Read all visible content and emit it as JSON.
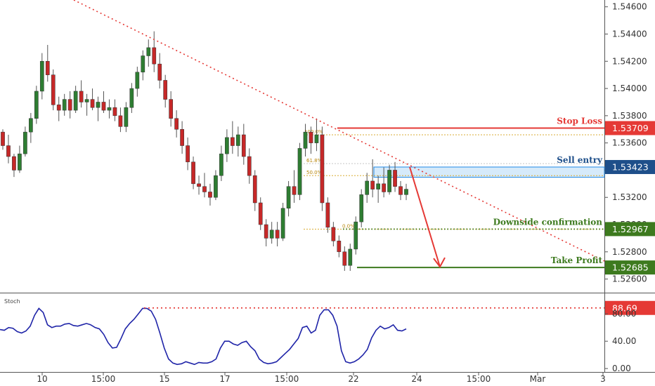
{
  "chart_data": {
    "type": "candlestick",
    "price_axis": {
      "ticks": [
        "1.54600",
        "1.54400",
        "1.54200",
        "1.54000",
        "1.53800",
        "1.53600",
        "1.53400",
        "1.53200",
        "1.53000",
        "1.52800",
        "1.52600"
      ],
      "range": [
        1.525,
        1.5465
      ]
    },
    "time_axis": {
      "ticks": [
        "10",
        "15:00",
        "15",
        "17",
        "15:00",
        "22",
        "24",
        "15:00",
        "Mar",
        "3"
      ]
    },
    "levels": {
      "stop_loss": {
        "label": "Stop Loss",
        "value": "1.53709",
        "price": 1.53709,
        "color": "#e53935"
      },
      "sell_entry": {
        "label": "Sell entry",
        "value": "1.53423",
        "price": 1.53423,
        "color": "#1e4f8a"
      },
      "downside_confirmation": {
        "label": "Downside confirmation",
        "value": "1.52967",
        "price": 1.52967,
        "color": "#3d7a1e"
      },
      "take_profit": {
        "label": "Take Profit",
        "value": "1.52685",
        "price": 1.52685,
        "color": "#3d7a1e"
      }
    },
    "fib_labels": [
      "100.0%",
      "61.8%",
      "50.0%",
      "0.0%"
    ],
    "stoch": {
      "label": "Stoch",
      "ticks": [
        "80.00",
        "40.00",
        "0.00"
      ],
      "range": [
        -5,
        110
      ],
      "level": {
        "value": "88.69",
        "number": 88.69,
        "color": "#e53935"
      },
      "series": [
        57,
        56,
        60,
        59,
        54,
        52,
        55,
        62,
        78,
        88,
        82,
        64,
        60,
        62,
        62,
        65,
        66,
        63,
        62,
        64,
        66,
        64,
        60,
        58,
        50,
        38,
        30,
        31,
        44,
        58,
        66,
        72,
        80,
        88,
        88,
        84,
        72,
        52,
        30,
        14,
        8,
        6,
        7,
        10,
        8,
        6,
        9,
        8,
        8,
        10,
        14,
        30,
        40,
        40,
        36,
        34,
        38,
        40,
        32,
        26,
        14,
        9,
        7,
        8,
        10,
        16,
        22,
        28,
        36,
        44,
        60,
        62,
        52,
        56,
        78,
        86,
        86,
        78,
        62,
        26,
        10,
        8,
        10,
        14,
        20,
        28,
        45,
        56,
        62,
        58,
        60,
        64,
        56,
        55,
        58
      ]
    },
    "price_series": [
      [
        1.5368,
        1.537,
        1.5355,
        1.5358
      ],
      [
        1.5358,
        1.5366,
        1.5345,
        1.535
      ],
      [
        1.535,
        1.5352,
        1.5335,
        1.534
      ],
      [
        1.534,
        1.5358,
        1.5338,
        1.5352
      ],
      [
        1.5352,
        1.5372,
        1.535,
        1.5368
      ],
      [
        1.5368,
        1.5382,
        1.536,
        1.5378
      ],
      [
        1.5378,
        1.5402,
        1.5374,
        1.5398
      ],
      [
        1.5398,
        1.5426,
        1.5392,
        1.542
      ],
      [
        1.542,
        1.5432,
        1.5405,
        1.541
      ],
      [
        1.541,
        1.5414,
        1.5384,
        1.5388
      ],
      [
        1.5388,
        1.5394,
        1.5376,
        1.5384
      ],
      [
        1.5384,
        1.5396,
        1.538,
        1.5392
      ],
      [
        1.5392,
        1.5398,
        1.5378,
        1.5384
      ],
      [
        1.5384,
        1.5402,
        1.5382,
        1.5398
      ],
      [
        1.5398,
        1.5406,
        1.5386,
        1.539
      ],
      [
        1.539,
        1.5396,
        1.538,
        1.5392
      ],
      [
        1.5392,
        1.54,
        1.5384,
        1.5386
      ],
      [
        1.5386,
        1.5394,
        1.5376,
        1.539
      ],
      [
        1.539,
        1.5398,
        1.5382,
        1.5384
      ],
      [
        1.5384,
        1.5392,
        1.5378,
        1.5386
      ],
      [
        1.5386,
        1.5392,
        1.5376,
        1.538
      ],
      [
        1.538,
        1.5386,
        1.5368,
        1.5372
      ],
      [
        1.5372,
        1.539,
        1.5368,
        1.5386
      ],
      [
        1.5386,
        1.5404,
        1.5382,
        1.54
      ],
      [
        1.54,
        1.5416,
        1.5394,
        1.5412
      ],
      [
        1.5412,
        1.5428,
        1.5406,
        1.5424
      ],
      [
        1.5424,
        1.5436,
        1.5416,
        1.543
      ],
      [
        1.543,
        1.5442,
        1.5412,
        1.5418
      ],
      [
        1.5418,
        1.5426,
        1.54,
        1.5406
      ],
      [
        1.5406,
        1.541,
        1.5386,
        1.5392
      ],
      [
        1.5392,
        1.5398,
        1.5372,
        1.5378
      ],
      [
        1.5378,
        1.5384,
        1.5364,
        1.537
      ],
      [
        1.537,
        1.5376,
        1.5352,
        1.5358
      ],
      [
        1.5358,
        1.5364,
        1.534,
        1.5346
      ],
      [
        1.5346,
        1.535,
        1.5326,
        1.533
      ],
      [
        1.533,
        1.5336,
        1.5322,
        1.5328
      ],
      [
        1.5328,
        1.5338,
        1.532,
        1.5324
      ],
      [
        1.5324,
        1.533,
        1.5314,
        1.532
      ],
      [
        1.532,
        1.534,
        1.5318,
        1.5336
      ],
      [
        1.5336,
        1.5358,
        1.5332,
        1.5352
      ],
      [
        1.5352,
        1.537,
        1.5346,
        1.5364
      ],
      [
        1.5364,
        1.5376,
        1.5352,
        1.5358
      ],
      [
        1.5358,
        1.5372,
        1.535,
        1.5366
      ],
      [
        1.5366,
        1.5374,
        1.5344,
        1.535
      ],
      [
        1.535,
        1.5356,
        1.533,
        1.5336
      ],
      [
        1.5336,
        1.534,
        1.531,
        1.5316
      ],
      [
        1.5316,
        1.532,
        1.5296,
        1.53
      ],
      [
        1.53,
        1.5304,
        1.5284,
        1.529
      ],
      [
        1.529,
        1.5302,
        1.5286,
        1.5296
      ],
      [
        1.5296,
        1.5302,
        1.5284,
        1.529
      ],
      [
        1.529,
        1.5316,
        1.5288,
        1.5312
      ],
      [
        1.5312,
        1.5332,
        1.5306,
        1.5328
      ],
      [
        1.5328,
        1.534,
        1.5316,
        1.5322
      ],
      [
        1.5322,
        1.536,
        1.5318,
        1.5356
      ],
      [
        1.5356,
        1.5374,
        1.535,
        1.5368
      ],
      [
        1.5368,
        1.5372,
        1.5352,
        1.536
      ],
      [
        1.536,
        1.5378,
        1.5354,
        1.5366
      ],
      [
        1.5366,
        1.5372,
        1.531,
        1.5316
      ],
      [
        1.5316,
        1.532,
        1.5294,
        1.5298
      ],
      [
        1.5298,
        1.5302,
        1.5284,
        1.5288
      ],
      [
        1.5288,
        1.5292,
        1.5276,
        1.528
      ],
      [
        1.528,
        1.5284,
        1.5266,
        1.527
      ],
      [
        1.527,
        1.5286,
        1.5266,
        1.5282
      ],
      [
        1.5282,
        1.5306,
        1.5278,
        1.5302
      ],
      [
        1.5302,
        1.5326,
        1.5298,
        1.5322
      ],
      [
        1.5322,
        1.5338,
        1.5316,
        1.5332
      ],
      [
        1.5332,
        1.5348,
        1.532,
        1.5326
      ],
      [
        1.5326,
        1.5336,
        1.5316,
        1.533
      ],
      [
        1.533,
        1.5342,
        1.532,
        1.5324
      ],
      [
        1.5324,
        1.5344,
        1.5322,
        1.534
      ],
      [
        1.534,
        1.5346,
        1.5324,
        1.5328
      ],
      [
        1.5328,
        1.5332,
        1.5318,
        1.5322
      ],
      [
        1.5322,
        1.533,
        1.5318,
        1.5326
      ]
    ]
  }
}
